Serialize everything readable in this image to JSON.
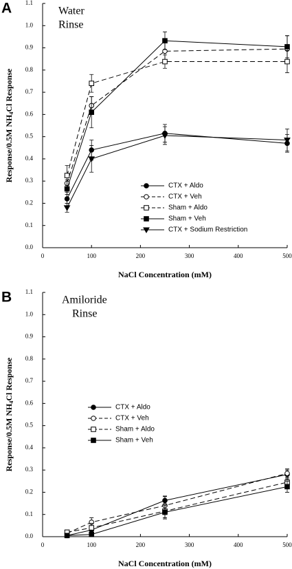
{
  "chart_data": [
    {
      "type": "line",
      "panel_label": "A",
      "annotation": [
        "Water",
        "Rinse"
      ],
      "x_label": "NaCl Concentration (mM)",
      "y_label": [
        "Response/0.5M NH",
        "4",
        "Cl Response"
      ],
      "x": [
        50,
        100,
        250,
        500
      ],
      "xlim": [
        0,
        500
      ],
      "xticks": [
        0,
        100,
        200,
        300,
        400,
        500
      ],
      "ylim": [
        0,
        1.1
      ],
      "yticks": [
        {
          "value": 0,
          "label": "0.0"
        },
        0.1,
        0.2,
        0.3,
        0.4,
        0.5,
        0.6,
        0.7,
        0.8,
        0.9,
        {
          "value": 1,
          "label": "1.0"
        },
        1.1
      ],
      "legend": "lower-center",
      "series": [
        {
          "name": "CTX + Aldo",
          "color": "#000000",
          "marker": "circle",
          "filled": true,
          "dashed": false,
          "values": [
            0.22,
            0.44,
            0.515,
            0.47
          ],
          "errors": [
            0.02,
            0.045,
            0.04,
            0.04
          ]
        },
        {
          "name": "CTX + Veh",
          "color": "#000000",
          "marker": "circle",
          "filled": false,
          "dashed": true,
          "values": [
            0.29,
            0.64,
            0.885,
            0.895
          ],
          "errors": [
            0.04,
            0.04,
            0.04,
            0.06
          ]
        },
        {
          "name": "Sham + Aldo",
          "color": "#000000",
          "marker": "square",
          "filled": false,
          "dashed": true,
          "values": [
            0.325,
            0.74,
            0.838,
            0.838
          ],
          "errors": [
            0.045,
            0.04,
            0.03,
            0.05
          ]
        },
        {
          "name": "Sham + Veh",
          "color": "#000000",
          "marker": "square",
          "filled": true,
          "dashed": false,
          "values": [
            0.265,
            0.61,
            0.932,
            0.905
          ],
          "errors": [
            0.04,
            0.07,
            0.04,
            0.05
          ]
        },
        {
          "name": "CTX + Sodium Restriction",
          "color": "#000000",
          "marker": "triangle-down",
          "filled": true,
          "dashed": false,
          "values": [
            0.18,
            0.4,
            0.505,
            0.485
          ],
          "errors": [
            0.02,
            0.06,
            0.04,
            0.05
          ]
        }
      ]
    },
    {
      "type": "line",
      "panel_label": "B",
      "annotation": [
        "Amiloride",
        "Rinse"
      ],
      "x_label": "NaCl Concentration (mM)",
      "y_label": [
        "Response/0.5M NH",
        "4",
        "Cl Response"
      ],
      "x": [
        50,
        100,
        250,
        500
      ],
      "xlim": [
        0,
        500
      ],
      "xticks": [
        0,
        100,
        200,
        300,
        400,
        500
      ],
      "ylim": [
        0,
        1.1
      ],
      "yticks": [
        {
          "value": 0,
          "label": "0.0"
        },
        0.1,
        0.2,
        0.3,
        0.4,
        0.5,
        0.6,
        0.7,
        0.8,
        0.9,
        {
          "value": 1,
          "label": "1.0"
        },
        1.1
      ],
      "legend": "center-left",
      "series": [
        {
          "name": "CTX + Aldo",
          "color": "#000000",
          "marker": "circle",
          "filled": true,
          "dashed": false,
          "values": [
            0.005,
            0.03,
            0.163,
            0.28
          ],
          "errors": [
            0.005,
            0.015,
            0.02,
            0.02
          ]
        },
        {
          "name": "CTX + Veh",
          "color": "#000000",
          "marker": "circle",
          "filled": false,
          "dashed": true,
          "values": [
            0.015,
            0.065,
            0.14,
            0.285
          ],
          "errors": [
            0.01,
            0.02,
            0.04,
            0.02
          ]
        },
        {
          "name": "Sham + Aldo",
          "color": "#000000",
          "marker": "square",
          "filled": false,
          "dashed": true,
          "values": [
            0.02,
            0.04,
            0.115,
            0.245
          ],
          "errors": [
            0.01,
            0.02,
            0.03,
            0.02
          ]
        },
        {
          "name": "Sham + Veh",
          "color": "#000000",
          "marker": "square",
          "filled": true,
          "dashed": false,
          "values": [
            0.005,
            0.01,
            0.11,
            0.225
          ],
          "errors": [
            0.005,
            0.01,
            0.03,
            0.025
          ]
        }
      ]
    }
  ]
}
